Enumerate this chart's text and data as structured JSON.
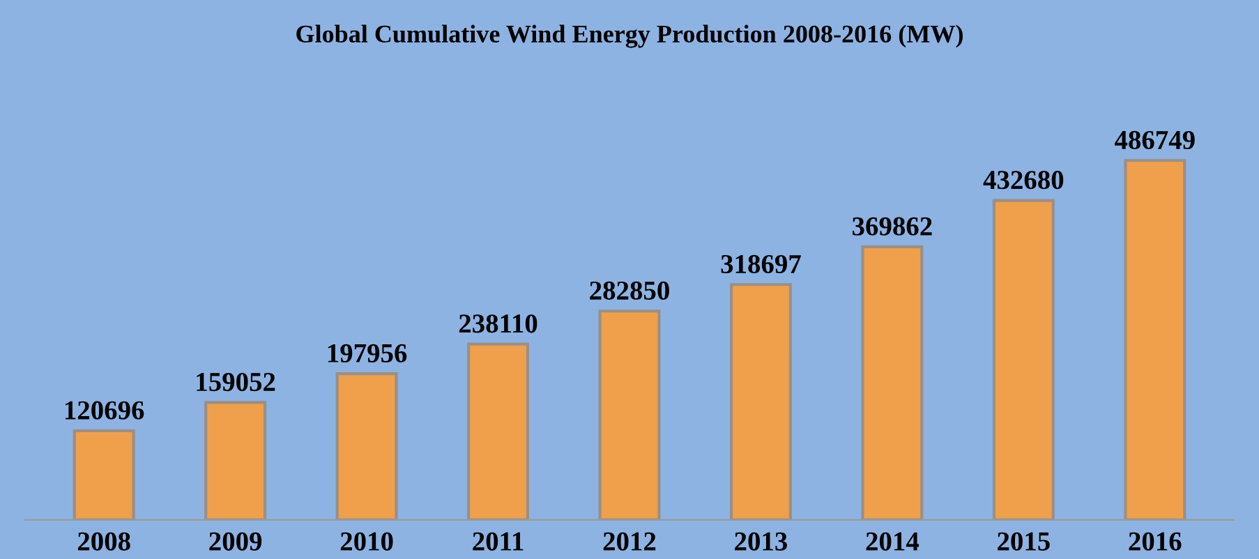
{
  "chart_data": {
    "type": "bar",
    "title": "Global Cumulative Wind Energy Production 2008-2016 (MW)",
    "categories": [
      "2008",
      "2009",
      "2010",
      "2011",
      "2012",
      "2013",
      "2014",
      "2015",
      "2016"
    ],
    "values": [
      120696,
      159052,
      197956,
      238110,
      282850,
      318697,
      369862,
      432680,
      486749
    ],
    "color": "#f0a04b",
    "data_labels": true,
    "grid": false,
    "legend": false
  }
}
